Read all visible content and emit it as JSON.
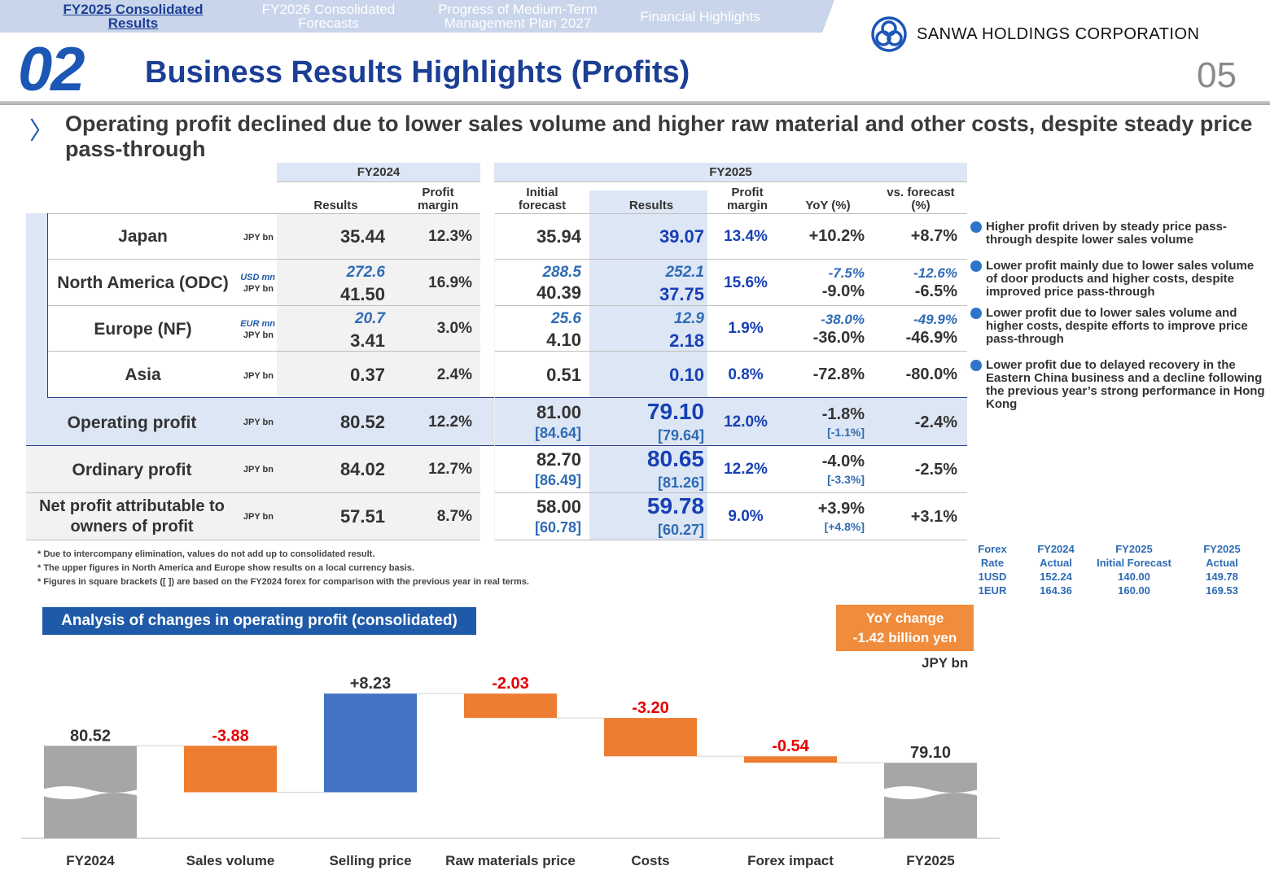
{
  "nav": {
    "tabs": [
      {
        "label": "FY2025 Consolidated Results",
        "active": true
      },
      {
        "label": "FY2026 Consolidated Forecasts",
        "active": false
      },
      {
        "label": "Progress of Medium-Term Management Plan 2027",
        "active": false
      },
      {
        "label": "Financial Highlights",
        "active": false
      }
    ]
  },
  "brand": {
    "name": "SANWA  HOLDINGS  CORPORATION",
    "logo_icon": "sanwa-logo-icon",
    "color": "#1c57b6"
  },
  "section_number": "02",
  "title": "Business Results Highlights (Profits)",
  "page_number": "05",
  "lead": "Operating profit declined due to lower sales volume and higher raw material and other costs, despite steady price pass-through",
  "table": {
    "group_fy2024": "FY2024",
    "group_fy2025": "FY2025",
    "headers": {
      "results": "Results",
      "profit_margin": "Profit margin",
      "initial_forecast": "Initial forecast",
      "results2": "Results",
      "profit_margin2": "Profit margin",
      "yoy": "YoY (%)",
      "vs_forecast": "vs. forecast (%)"
    },
    "rows": {
      "japan": {
        "label": "Japan",
        "unit": "JPY bn",
        "fy24": "35.44",
        "pm24": "12.3%",
        "init": "35.94",
        "res": "39.07",
        "pm25": "13.4%",
        "yoy": "+10.2%",
        "vsf": "+8.7%"
      },
      "na": {
        "label": "North America (ODC)",
        "unit_local": "USD mn",
        "unit": "JPY bn",
        "fy24_local": "272.6",
        "fy24": "41.50",
        "pm24": "16.9%",
        "init_local": "288.5",
        "init": "40.39",
        "res_local": "252.1",
        "res": "37.75",
        "pm25": "15.6%",
        "yoy_local": "-7.5%",
        "yoy": "-9.0%",
        "vsf_local": "-12.6%",
        "vsf": "-6.5%"
      },
      "eu": {
        "label": "Europe (NF)",
        "unit_local": "EUR mn",
        "unit": "JPY bn",
        "fy24_local": "20.7",
        "fy24": "3.41",
        "pm24": "3.0%",
        "init_local": "25.6",
        "init": "4.10",
        "res_local": "12.9",
        "res": "2.18",
        "pm25": "1.9%",
        "yoy_local": "-38.0%",
        "yoy": "-36.0%",
        "vsf_local": "-49.9%",
        "vsf": "-46.9%"
      },
      "asia": {
        "label": "Asia",
        "unit": "JPY bn",
        "fy24": "0.37",
        "pm24": "2.4%",
        "init": "0.51",
        "res": "0.10",
        "pm25": "0.8%",
        "yoy": "-72.8%",
        "vsf": "-80.0%"
      },
      "op": {
        "label": "Operating profit",
        "unit": "JPY bn",
        "fy24": "80.52",
        "pm24": "12.2%",
        "init": "81.00",
        "init_b": "[84.64]",
        "res": "79.10",
        "res_b": "[79.64]",
        "pm25": "12.0%",
        "yoy": "-1.8%",
        "yoy_b": "[-1.1%]",
        "vsf": "-2.4%"
      },
      "ord": {
        "label": "Ordinary profit",
        "unit": "JPY bn",
        "fy24": "84.02",
        "pm24": "12.7%",
        "init": "82.70",
        "init_b": "[86.49]",
        "res": "80.65",
        "res_b": "[81.26]",
        "pm25": "12.2%",
        "yoy": "-4.0%",
        "yoy_b": "[-3.3%]",
        "vsf": "-2.5%"
      },
      "net": {
        "label": "Net profit attributable to owners of profit",
        "unit": "JPY bn",
        "fy24": "57.51",
        "pm24": "8.7%",
        "init": "58.00",
        "init_b": "[60.78]",
        "res": "59.78",
        "res_b": "[60.27]",
        "pm25": "9.0%",
        "yoy": "+3.9%",
        "yoy_b": "[+4.8%]",
        "vsf": "+3.1%"
      }
    }
  },
  "bullets": [
    "Higher profit driven by steady price pass-through despite lower sales volume",
    "Lower profit mainly due to lower sales volume of door products and higher costs, despite improved price pass-through",
    "Lower profit due to lower sales volume and higher costs, despite efforts to improve price pass-through",
    "Lower profit due to delayed recovery in the Eastern China business and a decline following the previous year’s strong performance in Hong Kong"
  ],
  "notes": [
    "* Due to intercompany elimination, values do not add up to consolidated result.",
    "* The upper figures in North America and Europe show results on a local currency basis.",
    "* Figures in square brackets ([ ]) are based on the FY2024 forex for comparison with the previous year in real terms."
  ],
  "forex": {
    "label1": "Forex",
    "label2": "Rate",
    "usd": "1USD",
    "eur": "1EUR",
    "cols": [
      {
        "h1": "FY2024",
        "h2": "Actual",
        "usd": "152.24",
        "eur": "164.36"
      },
      {
        "h1": "FY2025",
        "h2": "Initial Forecast",
        "usd": "140.00",
        "eur": "160.00"
      },
      {
        "h1": "FY2025",
        "h2": "Actual",
        "usd": "149.78",
        "eur": "169.53"
      }
    ]
  },
  "waterfall": {
    "title": "Analysis of changes in operating profit (consolidated)",
    "yoy_line1": "YoY change",
    "yoy_line2": "-1.42 billion yen",
    "unit": "JPY bn"
  },
  "chart_data": {
    "type": "bar",
    "subtype": "waterfall",
    "categories": [
      "FY2024",
      "Sales volume",
      "Selling price",
      "Raw materials price",
      "Costs",
      "Forex impact",
      "FY2025"
    ],
    "values": [
      80.52,
      -3.88,
      8.23,
      -2.03,
      -3.2,
      -0.54,
      79.1
    ],
    "labels": [
      "80.52",
      "-3.88",
      "+8.23",
      "-2.03",
      "-3.20",
      "-0.54",
      "79.10"
    ],
    "kinds": [
      "total",
      "delta",
      "delta",
      "delta",
      "delta",
      "delta",
      "total"
    ],
    "colors": {
      "total": "#a6a6a6",
      "increase": "#4472c4",
      "decrease": "#ed7d31",
      "negative_label": "#e60000",
      "positive_label": "#333333"
    }
  }
}
